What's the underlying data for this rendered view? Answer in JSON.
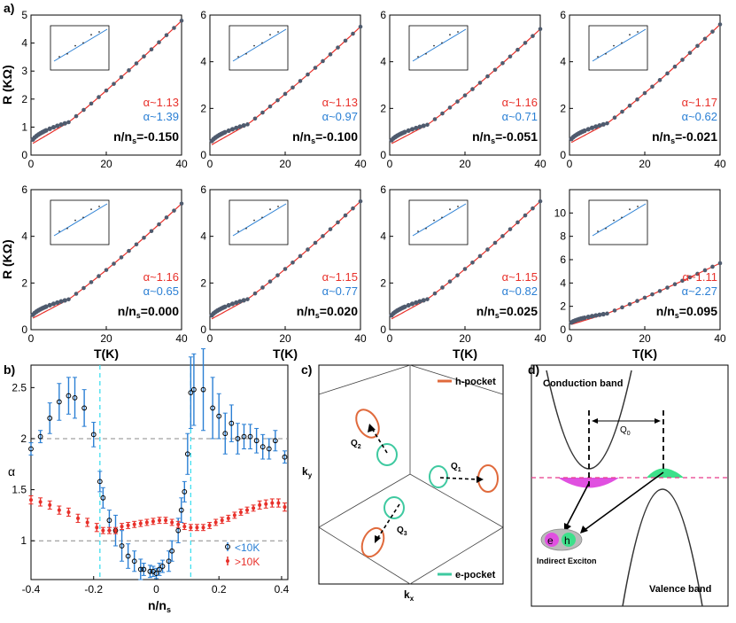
{
  "figure": {
    "panel_labels": [
      "a)",
      "b)",
      "c)",
      "d)"
    ],
    "colors": {
      "red_fit": "#e8302a",
      "blue_fit": "#2a7fd4",
      "data_dot": "#4f5b6e",
      "low_T": "#2a7fd4",
      "high_T": "#e8302a",
      "cyan_line": "#40e0f0",
      "h_pocket": "#e06a3c",
      "e_pocket": "#3ec9a0",
      "electron": "#e050e0",
      "hole": "#3de08a"
    }
  },
  "chart_data": [
    {
      "type": "scatter",
      "grid": "a-panels",
      "ylabel": "R (KΩ)",
      "xlabel": "T(K)",
      "xlim": [
        0,
        40
      ],
      "xticks": [
        "0",
        "20",
        "40"
      ],
      "panels": [
        {
          "n_label": "n/n",
          "n_sub": "s",
          "n_value": "=-0.150",
          "alpha_red": "α~1.13",
          "alpha_blue": "α~1.39",
          "ylim": [
            0,
            5
          ],
          "yticks": [
            "0",
            "1",
            "2",
            "3",
            "4",
            "5"
          ],
          "R40": 4.8,
          "Rlow": 0.38,
          "alpha": 1.13
        },
        {
          "n_label": "n/n",
          "n_sub": "s",
          "n_value": "=-0.100",
          "alpha_red": "α~1.13",
          "alpha_blue": "α~0.97",
          "ylim": [
            0,
            6
          ],
          "yticks": [
            "0",
            "2",
            "4",
            "6"
          ],
          "R40": 5.5,
          "Rlow": 0.4,
          "alpha": 1.13
        },
        {
          "n_label": "n/n",
          "n_sub": "s",
          "n_value": "=-0.051",
          "alpha_red": "α~1.16",
          "alpha_blue": "α~0.71",
          "ylim": [
            0,
            6
          ],
          "yticks": [
            "0",
            "2",
            "4",
            "6"
          ],
          "R40": 5.4,
          "Rlow": 0.45,
          "alpha": 1.16
        },
        {
          "n_label": "n/n",
          "n_sub": "s",
          "n_value": "=-0.021",
          "alpha_red": "α~1.17",
          "alpha_blue": "α~0.62",
          "ylim": [
            0,
            6
          ],
          "yticks": [
            "0",
            "2",
            "4",
            "6"
          ],
          "R40": 5.6,
          "Rlow": 0.5,
          "alpha": 1.17
        },
        {
          "n_label": "n/n",
          "n_sub": "s",
          "n_value": "=0.000",
          "alpha_red": "α~1.16",
          "alpha_blue": "α~0.65",
          "ylim": [
            0,
            6
          ],
          "yticks": [
            "0",
            "2",
            "4",
            "6"
          ],
          "R40": 5.4,
          "Rlow": 0.45,
          "alpha": 1.16
        },
        {
          "n_label": "n/n",
          "n_sub": "s",
          "n_value": "=0.020",
          "alpha_red": "α~1.15",
          "alpha_blue": "α~0.77",
          "ylim": [
            0,
            6
          ],
          "yticks": [
            "0",
            "2",
            "4",
            "6"
          ],
          "R40": 5.5,
          "Rlow": 0.42,
          "alpha": 1.15
        },
        {
          "n_label": "n/n",
          "n_sub": "s",
          "n_value": "=0.025",
          "alpha_red": "α~1.15",
          "alpha_blue": "α~0.82",
          "ylim": [
            0,
            6
          ],
          "yticks": [
            "0",
            "2",
            "4",
            "6"
          ],
          "R40": 5.5,
          "Rlow": 0.42,
          "alpha": 1.15
        },
        {
          "n_label": "n/n",
          "n_sub": "s",
          "n_value": "=0.095",
          "alpha_red": "α~1.11",
          "alpha_blue": "α~2.27",
          "ylim": [
            0,
            12
          ],
          "yticks": [
            "0",
            "2",
            "4",
            "6",
            "8",
            "10"
          ],
          "R40": 5.7,
          "Rlow": 0.4,
          "alpha": 1.11
        }
      ]
    },
    {
      "type": "scatter",
      "xlabel": "n/n",
      "xlabel_sub": "s",
      "ylabel": "α",
      "xlim": [
        -0.4,
        0.42
      ],
      "ylim": [
        0.62,
        2.72
      ],
      "xticks": [
        -0.4,
        -0.2,
        0,
        0.2,
        0.4
      ],
      "xtick_labels": [
        "-0.4",
        "-0.2",
        "0",
        "0.2",
        "0.4"
      ],
      "yticks": [
        1,
        1.5,
        2,
        2.5
      ],
      "ytick_labels": [
        "1",
        "1.5",
        "2",
        "2.5"
      ],
      "hlines": [
        1,
        2
      ],
      "vlines": [
        -0.18,
        0.11
      ],
      "legend": [
        {
          "name": "<10K",
          "color": "#2a7fd4"
        },
        {
          "name": ">10K",
          "color": "#e8302a"
        }
      ],
      "legend_position": "bottom-right",
      "series": [
        {
          "name": "<10K",
          "x": [
            -0.4,
            -0.37,
            -0.34,
            -0.31,
            -0.28,
            -0.26,
            -0.23,
            -0.2,
            -0.18,
            -0.17,
            -0.15,
            -0.13,
            -0.11,
            -0.09,
            -0.07,
            -0.05,
            -0.04,
            -0.02,
            -0.01,
            0.0,
            0.01,
            0.02,
            0.04,
            0.05,
            0.07,
            0.08,
            0.09,
            0.1,
            0.11,
            0.12,
            0.15,
            0.18,
            0.2,
            0.22,
            0.24,
            0.26,
            0.28,
            0.3,
            0.32,
            0.34,
            0.36,
            0.38,
            0.41
          ],
          "y": [
            1.9,
            2.02,
            2.2,
            2.36,
            2.42,
            2.4,
            2.3,
            2.04,
            1.58,
            1.42,
            1.2,
            1.1,
            0.95,
            0.85,
            0.8,
            0.72,
            0.72,
            0.7,
            0.7,
            0.68,
            0.72,
            0.75,
            0.8,
            0.9,
            1.1,
            1.3,
            1.48,
            1.85,
            2.45,
            2.48,
            2.48,
            2.3,
            2.22,
            2.05,
            2.15,
            2.0,
            2.02,
            2.02,
            1.98,
            1.92,
            1.9,
            1.98,
            1.82
          ],
          "err": [
            0.06,
            0.06,
            0.15,
            0.18,
            0.18,
            0.2,
            0.18,
            0.12,
            0.1,
            0.1,
            0.1,
            0.15,
            0.15,
            0.12,
            0.1,
            0.1,
            0.06,
            0.06,
            0.05,
            0.05,
            0.06,
            0.06,
            0.1,
            0.1,
            0.12,
            0.12,
            0.1,
            0.2,
            0.35,
            0.35,
            0.4,
            0.3,
            0.22,
            0.2,
            0.18,
            0.15,
            0.12,
            0.12,
            0.12,
            0.12,
            0.1,
            0.1,
            0.06
          ]
        },
        {
          "name": ">10K",
          "x": [
            -0.4,
            -0.37,
            -0.34,
            -0.31,
            -0.28,
            -0.25,
            -0.22,
            -0.19,
            -0.17,
            -0.15,
            -0.13,
            -0.11,
            -0.09,
            -0.07,
            -0.05,
            -0.03,
            -0.01,
            0.01,
            0.03,
            0.05,
            0.07,
            0.09,
            0.11,
            0.13,
            0.15,
            0.17,
            0.19,
            0.21,
            0.23,
            0.25,
            0.27,
            0.29,
            0.31,
            0.33,
            0.35,
            0.37,
            0.39,
            0.41
          ],
          "y": [
            1.4,
            1.38,
            1.35,
            1.3,
            1.28,
            1.22,
            1.18,
            1.13,
            1.1,
            1.1,
            1.1,
            1.14,
            1.15,
            1.16,
            1.17,
            1.18,
            1.19,
            1.2,
            1.2,
            1.18,
            1.16,
            1.14,
            1.13,
            1.13,
            1.13,
            1.15,
            1.18,
            1.2,
            1.22,
            1.25,
            1.28,
            1.3,
            1.32,
            1.35,
            1.36,
            1.37,
            1.37,
            1.33
          ],
          "err": [
            0.04,
            0.04,
            0.04,
            0.04,
            0.04,
            0.04,
            0.04,
            0.04,
            0.03,
            0.03,
            0.03,
            0.03,
            0.03,
            0.03,
            0.03,
            0.03,
            0.03,
            0.03,
            0.03,
            0.03,
            0.03,
            0.03,
            0.03,
            0.03,
            0.03,
            0.03,
            0.03,
            0.03,
            0.03,
            0.03,
            0.03,
            0.03,
            0.03,
            0.04,
            0.04,
            0.04,
            0.04,
            0.04
          ]
        }
      ]
    }
  ],
  "panel_c": {
    "legend": [
      {
        "name": "h-pocket"
      },
      {
        "name": "e-pocket"
      }
    ],
    "vectors": [
      {
        "label": "Q",
        "sub": "1"
      },
      {
        "label": "Q",
        "sub": "2"
      },
      {
        "label": "Q",
        "sub": "3"
      }
    ],
    "axis_x": "k",
    "axis_x_sub": "x",
    "axis_y": "k",
    "axis_y_sub": "y"
  },
  "panel_d": {
    "conduction": "Conduction band",
    "valence": "Valence band",
    "q0": "Q",
    "q0_sub": "0",
    "exciton": "Indirect Exciton",
    "e": "e",
    "h": "h"
  }
}
